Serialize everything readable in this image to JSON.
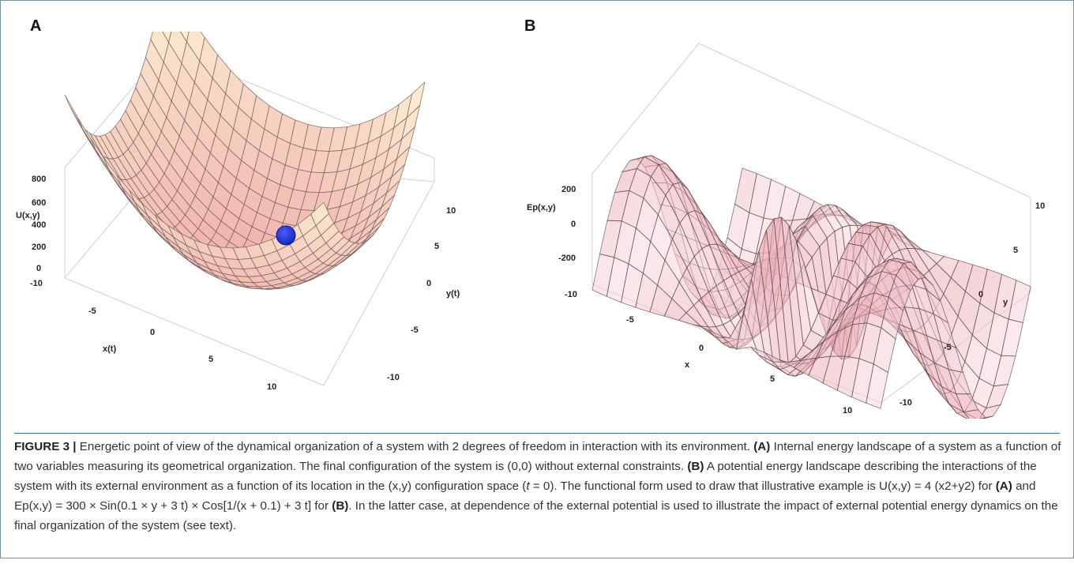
{
  "panel_a": {
    "letter": "A",
    "z_axis_label": "U(x,y)",
    "z_ticks": [
      "800",
      "600",
      "400",
      "200",
      "0"
    ],
    "x_axis_label": "x(t)",
    "x_ticks": [
      "-10",
      "-5",
      "0",
      "5",
      "10"
    ],
    "y_axis_label": "y(t)",
    "y_ticks": [
      "10",
      "5",
      "0",
      "-5",
      "-10"
    ],
    "surface_color": "#f3b8b0",
    "ball_color": "#1f2fd0"
  },
  "panel_b": {
    "letter": "B",
    "z_axis_label": "Ep(x,y)",
    "z_ticks": [
      "200",
      "0",
      "-200"
    ],
    "x_axis_label": "x",
    "x_ticks": [
      "-10",
      "-5",
      "0",
      "5",
      "10"
    ],
    "y_axis_label": "y",
    "y_ticks": [
      "10",
      "5",
      "0",
      "-5",
      "-10"
    ],
    "surface_color": "#e9a8ad"
  },
  "caption": {
    "figure_label": "FIGURE 3 |",
    "intro": "Energetic point of view of the dynamical organization of a system with 2 degrees of freedom in interaction with its environment.",
    "ref_a1": "(A)",
    "text_a": "Internal energy landscape of a system as a function of two variables measuring its geometrical organization. The final configuration of the system is (0,0) without external constraints.",
    "ref_b1": "(B)",
    "text_b1": "A potential energy landscape describing the interactions of the system with its external environment as a function of its location in the (x,y) configuration space (",
    "t_var": "t",
    "text_b2": "= 0). The functional form used to draw that illustrative example is U(x,y) = 4 (x2+y2) for",
    "ref_a2": "(A)",
    "text_b3": "and Ep(x,y) = 300 × Sin(0.1 × y + 3 t) × Cos[1/(x + 0.1) + 3 t] for",
    "ref_b2": "(B)",
    "text_end": ". In the latter case, at dependence of the external potential is used to illustrate the impact of external potential energy dynamics on the final organization of the system (see text)."
  }
}
